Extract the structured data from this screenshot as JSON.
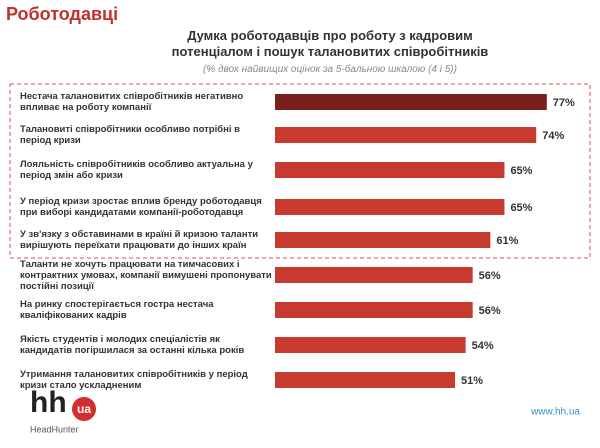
{
  "header": "Роботодавці",
  "chart_data": {
    "type": "bar",
    "orientation": "horizontal",
    "title": "Думка роботодавців про роботу з кадровим потенціалом і пошук талановитих співробітників",
    "subtitle": "(% двох найвищих оцінок за 5-бальною шкалою (4  і 5))",
    "categories": [
      "Нестача талановитих співробітників негативно впливає на роботу компанії",
      "Талановиті співробітники особливо потрібні в період кризи",
      "Лояльність співробітників особливо актуальна у період змін або кризи",
      "У період кризи зростає вплив бренду роботодавця при виборі кандидатами компанії-роботодавця",
      "У зв'язку з обставинами в країні й кризою таланти вирішують переїхати працювати до інших країн",
      "Таланти не хочуть працювати на тимчасових і контрактних умовах, компанії вимушені пропонувати постійні позиції",
      "На ринку спостерігається гостра нестача кваліфікованих кадрів",
      "Якість студентів і молодих спеціалістів як кандидатів погіршилася за останні кілька років",
      "Утримання талановитих співробітників у період кризи стало ускладненим"
    ],
    "values": [
      77,
      74,
      65,
      65,
      61,
      56,
      56,
      54,
      51
    ],
    "value_labels": [
      "77%",
      "74%",
      "65%",
      "65%",
      "61%",
      "56%",
      "56%",
      "54%",
      "51%"
    ],
    "colors": [
      "#7b1e1e",
      "#c73a30",
      "#c73a30",
      "#c73a30",
      "#c73a30",
      "#c73a30",
      "#c73a30",
      "#c73a30",
      "#c73a30"
    ],
    "xlim": [
      0,
      100
    ]
  },
  "logo": {
    "text": "hh",
    "badge": "ua",
    "caption": "HeadHunter"
  },
  "website": "www.hh.ua"
}
